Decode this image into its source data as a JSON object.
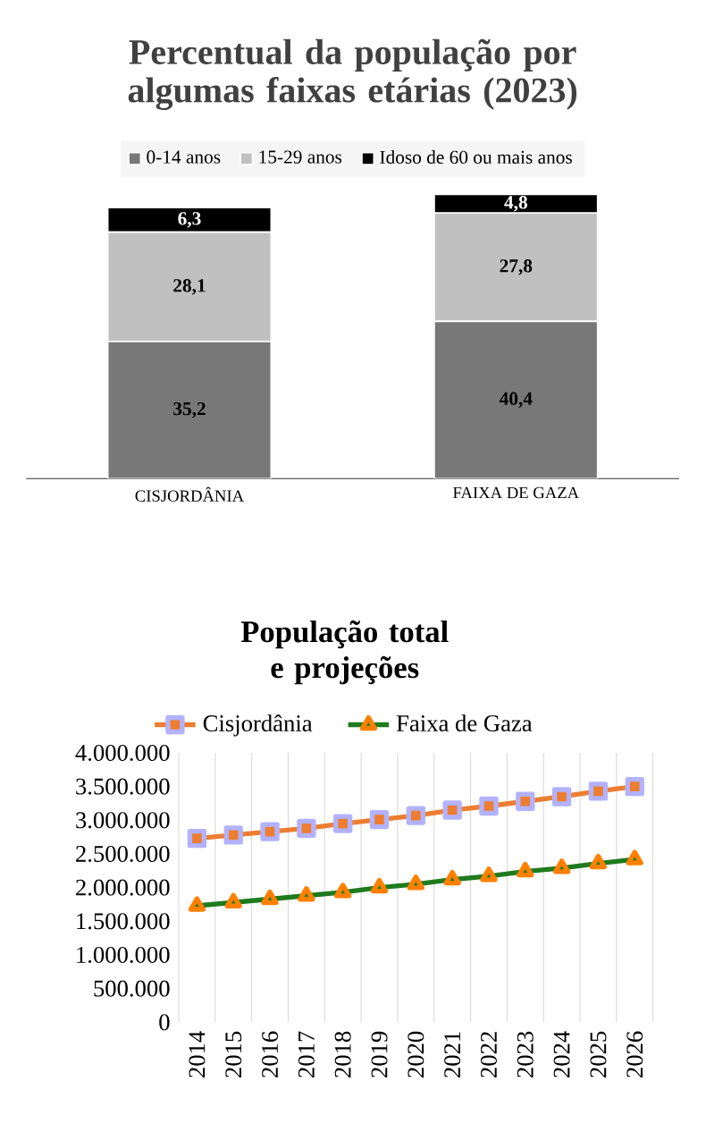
{
  "chart_data": [
    {
      "type": "bar",
      "title": "Percentual da população por algumas faixas etárias (2023)",
      "stacked": true,
      "legend": "top",
      "categories": [
        "CISJORDÂNIA",
        "FAIXA DE GAZA"
      ],
      "series": [
        {
          "name": "0-14 anos",
          "color": "#787878",
          "values": [
            35.2,
            40.4
          ],
          "value_labels": [
            "35,2",
            "40,4"
          ]
        },
        {
          "name": "15-29 anos",
          "color": "#c0c0c0",
          "values": [
            28.1,
            27.8
          ],
          "value_labels": [
            "28,1",
            "27,8"
          ]
        },
        {
          "name": "Idoso de 60 ou mais anos",
          "color": "#000000",
          "values": [
            6.3,
            4.8
          ],
          "value_labels": [
            "6,3",
            "4,8"
          ]
        }
      ]
    },
    {
      "type": "line",
      "title": "População total e projeções",
      "legend": "top",
      "grid": "x",
      "categories": [
        "2014",
        "2015",
        "2016",
        "2017",
        "2018",
        "2019",
        "2020",
        "2021",
        "2022",
        "2023",
        "2024",
        "2025",
        "2026"
      ],
      "ylim": [
        0,
        4000000
      ],
      "yticks": [
        0,
        {
          "value": 500000,
          "label": "500.000"
        },
        {
          "value": 1000000,
          "label": "1.000.000"
        },
        {
          "value": 1500000,
          "label": "1.500.000"
        },
        {
          "value": 2000000,
          "label": "2.000.000"
        },
        {
          "value": 2500000,
          "label": "2.500.000"
        },
        {
          "value": 3000000,
          "label": "3.000.000"
        },
        {
          "value": 3500000,
          "label": "3.500.000"
        },
        {
          "value": 4000000,
          "label": "4.000.000"
        }
      ],
      "series": [
        {
          "name": "Cisjordânia",
          "color": "#ed7d31",
          "marker": "square",
          "values": [
            2730000,
            2780000,
            2830000,
            2880000,
            2950000,
            3010000,
            3070000,
            3150000,
            3210000,
            3280000,
            3350000,
            3430000,
            3500000
          ]
        },
        {
          "name": "Faixa de Gaza",
          "color": "#1e7b1e",
          "marker": "triangle",
          "values": [
            1730000,
            1780000,
            1830000,
            1880000,
            1930000,
            2000000,
            2050000,
            2120000,
            2170000,
            2240000,
            2290000,
            2360000,
            2420000
          ]
        }
      ]
    }
  ]
}
